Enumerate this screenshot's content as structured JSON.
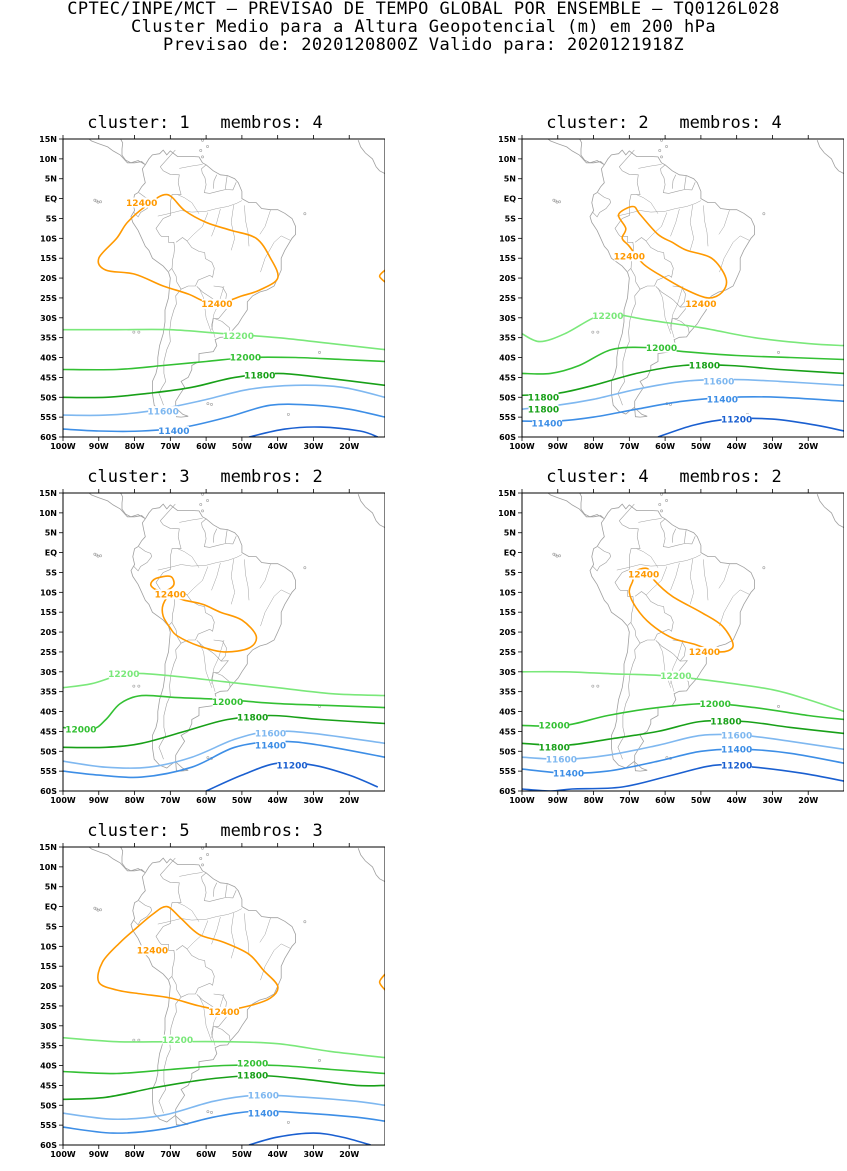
{
  "header": {
    "line1": "CPTEC/INPE/MCT – PREVISAO DE TEMPO GLOBAL POR ENSEMBLE – TQ0126L028",
    "line2": "Cluster Medio para a Altura Geopotencial (m) em 200 hPa",
    "line3": "Previsao de: 2020120800Z   Valido para: 2020121918Z"
  },
  "axes": {
    "lat_labels": [
      "15N",
      "10N",
      "5N",
      "EQ",
      "5S",
      "10S",
      "15S",
      "20S",
      "25S",
      "30S",
      "35S",
      "40S",
      "45S",
      "50S",
      "55S",
      "60S"
    ],
    "lon_labels": [
      "100W",
      "90W",
      "80W",
      "70W",
      "60W",
      "50W",
      "40W",
      "30W",
      "20W"
    ],
    "lon_range": [
      -100,
      -10
    ],
    "lat_range": [
      -60,
      15
    ]
  },
  "colors": {
    "12400": "#ff9900",
    "12200": "#7ae87a",
    "12000": "#33c033",
    "11800": "#18a018",
    "11600": "#7fb8f0",
    "11400": "#3d8ee6",
    "11200": "#1a5fd0",
    "coast": "#a0a0a0"
  },
  "panels": [
    {
      "title": "cluster: 1   membros: 4",
      "contour_labels": [
        {
          "text": "12400",
          "color_key": "12400",
          "lon": -78,
          "lat": -1
        },
        {
          "text": "12400",
          "color_key": "12400",
          "lon": -57,
          "lat": -26.5
        },
        {
          "text": "12200",
          "color_key": "12200",
          "lon": -51,
          "lat": -34.5
        },
        {
          "text": "12000",
          "color_key": "12000",
          "lon": -49,
          "lat": -40
        },
        {
          "text": "11800",
          "color_key": "11800",
          "lon": -45,
          "lat": -44.5
        },
        {
          "text": "11600",
          "color_key": "11600",
          "lon": -72,
          "lat": -53.5
        },
        {
          "text": "11400",
          "color_key": "11400",
          "lon": -69,
          "lat": -58.5
        }
      ]
    },
    {
      "title": "cluster: 2   membros: 4",
      "contour_labels": [
        {
          "text": "12400",
          "color_key": "12400",
          "lon": -70,
          "lat": -14.5
        },
        {
          "text": "12400",
          "color_key": "12400",
          "lon": -50,
          "lat": -26.5
        },
        {
          "text": "12200",
          "color_key": "12200",
          "lon": -76,
          "lat": -29.5
        },
        {
          "text": "12000",
          "color_key": "12000",
          "lon": -61,
          "lat": -37.5
        },
        {
          "text": "11800",
          "color_key": "11800",
          "lon": -49,
          "lat": -42
        },
        {
          "text": "11600",
          "color_key": "11600",
          "lon": -45,
          "lat": -46
        },
        {
          "text": "11800",
          "color_key": "11800",
          "lon": -94,
          "lat": -50
        },
        {
          "text": "11800",
          "color_key": "11800",
          "lon": -94,
          "lat": -53
        },
        {
          "text": "11400",
          "color_key": "11400",
          "lon": -44,
          "lat": -50.5
        },
        {
          "text": "11400",
          "color_key": "11400",
          "lon": -93,
          "lat": -56.5
        },
        {
          "text": "11200",
          "color_key": "11200",
          "lon": -40,
          "lat": -55.5
        }
      ]
    },
    {
      "title": "cluster: 3   membros: 2",
      "contour_labels": [
        {
          "text": "12400",
          "color_key": "12400",
          "lon": -70,
          "lat": -10.5
        },
        {
          "text": "12200",
          "color_key": "12200",
          "lon": -83,
          "lat": -30.5
        },
        {
          "text": "12000",
          "color_key": "12000",
          "lon": -54,
          "lat": -37.5
        },
        {
          "text": "12000",
          "color_key": "12000",
          "lon": -95,
          "lat": -44.5
        },
        {
          "text": "11800",
          "color_key": "11800",
          "lon": -47,
          "lat": -41.5
        },
        {
          "text": "11600",
          "color_key": "11600",
          "lon": -42,
          "lat": -45.5
        },
        {
          "text": "11400",
          "color_key": "11400",
          "lon": -42,
          "lat": -48.5
        },
        {
          "text": "11200",
          "color_key": "11200",
          "lon": -36,
          "lat": -53.5
        }
      ]
    },
    {
      "title": "cluster: 4   membros: 2",
      "contour_labels": [
        {
          "text": "12400",
          "color_key": "12400",
          "lon": -66,
          "lat": -5.5
        },
        {
          "text": "12400",
          "color_key": "12400",
          "lon": -49,
          "lat": -25
        },
        {
          "text": "12200",
          "color_key": "12200",
          "lon": -57,
          "lat": -31
        },
        {
          "text": "12000",
          "color_key": "12000",
          "lon": -46,
          "lat": -38
        },
        {
          "text": "12000",
          "color_key": "12000",
          "lon": -91,
          "lat": -43.5
        },
        {
          "text": "11800",
          "color_key": "11800",
          "lon": -43,
          "lat": -42.5
        },
        {
          "text": "11800",
          "color_key": "11800",
          "lon": -91,
          "lat": -49
        },
        {
          "text": "11600",
          "color_key": "11600",
          "lon": -40,
          "lat": -46
        },
        {
          "text": "11600",
          "color_key": "11600",
          "lon": -89,
          "lat": -52
        },
        {
          "text": "11400",
          "color_key": "11400",
          "lon": -40,
          "lat": -49.5
        },
        {
          "text": "11400",
          "color_key": "11400",
          "lon": -87,
          "lat": -55.5
        },
        {
          "text": "11200",
          "color_key": "11200",
          "lon": -40,
          "lat": -53.5
        }
      ]
    },
    {
      "title": "cluster: 5   membros: 3",
      "contour_labels": [
        {
          "text": "12400",
          "color_key": "12400",
          "lon": -75,
          "lat": -11
        },
        {
          "text": "12400",
          "color_key": "12400",
          "lon": -55,
          "lat": -26.5
        },
        {
          "text": "12200",
          "color_key": "12200",
          "lon": -68,
          "lat": -33.5
        },
        {
          "text": "12000",
          "color_key": "12000",
          "lon": -47,
          "lat": -39.5
        },
        {
          "text": "11800",
          "color_key": "11800",
          "lon": -47,
          "lat": -42.5
        },
        {
          "text": "11600",
          "color_key": "11600",
          "lon": -44,
          "lat": -47.5
        },
        {
          "text": "11400",
          "color_key": "11400",
          "lon": -44,
          "lat": -52
        }
      ]
    }
  ]
}
